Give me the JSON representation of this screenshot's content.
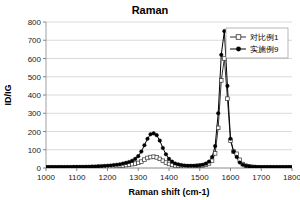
{
  "chart_data": {
    "type": "line",
    "title": "Raman",
    "x_label": "Raman shift (cm-1)",
    "y_label": "ID/IG",
    "x": [
      1000,
      1010,
      1020,
      1030,
      1040,
      1050,
      1060,
      1070,
      1080,
      1090,
      1100,
      1110,
      1120,
      1130,
      1140,
      1150,
      1160,
      1170,
      1180,
      1190,
      1200,
      1210,
      1220,
      1230,
      1240,
      1250,
      1260,
      1270,
      1280,
      1290,
      1300,
      1310,
      1320,
      1330,
      1340,
      1350,
      1360,
      1370,
      1380,
      1390,
      1400,
      1410,
      1420,
      1430,
      1440,
      1450,
      1460,
      1470,
      1480,
      1490,
      1500,
      1510,
      1520,
      1530,
      1540,
      1550,
      1560,
      1570,
      1580,
      1590,
      1600,
      1610,
      1620,
      1630,
      1640,
      1650,
      1660,
      1670,
      1680,
      1690,
      1700,
      1710,
      1720,
      1730,
      1740,
      1750,
      1760,
      1770,
      1780,
      1790,
      1800
    ],
    "series": [
      {
        "name": "对比例1",
        "color": "#333333",
        "marker": "square-open",
        "values": [
          3,
          3,
          3,
          3,
          3,
          3,
          3,
          3,
          3,
          4,
          4,
          4,
          4,
          4,
          4,
          5,
          5,
          6,
          6,
          7,
          8,
          9,
          10,
          11,
          12,
          14,
          16,
          18,
          21,
          24,
          28,
          35,
          46,
          55,
          60,
          62,
          58,
          50,
          40,
          30,
          22,
          17,
          14,
          12,
          11,
          10,
          10,
          10,
          10,
          11,
          12,
          14,
          18,
          25,
          40,
          80,
          220,
          480,
          600,
          380,
          150,
          90,
          78,
          45,
          22,
          12,
          8,
          6,
          5,
          4,
          4,
          4,
          4,
          4,
          4,
          4,
          4,
          4,
          4,
          4,
          4
        ]
      },
      {
        "name": "实施例9",
        "color": "#000000",
        "marker": "circle",
        "values": [
          5,
          5,
          5,
          5,
          5,
          5,
          5,
          5,
          5,
          6,
          6,
          6,
          6,
          7,
          7,
          8,
          8,
          9,
          10,
          11,
          12,
          14,
          16,
          18,
          20,
          24,
          28,
          33,
          40,
          50,
          65,
          90,
          125,
          160,
          185,
          190,
          180,
          150,
          110,
          75,
          50,
          35,
          25,
          20,
          16,
          14,
          12,
          12,
          12,
          13,
          15,
          18,
          24,
          35,
          60,
          120,
          300,
          620,
          750,
          450,
          160,
          90,
          60,
          30,
          18,
          12,
          9,
          7,
          6,
          5,
          5,
          5,
          5,
          5,
          5,
          5,
          5,
          5,
          5,
          5,
          5
        ]
      }
    ],
    "xlim": [
      1000,
      1800
    ],
    "xticks": [
      1000,
      1100,
      1200,
      1300,
      1400,
      1500,
      1600,
      1700,
      1800
    ],
    "ylim": [
      0,
      800
    ],
    "yticks": [
      0,
      100,
      200,
      300,
      400,
      500,
      600,
      700,
      800
    ],
    "grid": true,
    "legend": "upper-right"
  }
}
